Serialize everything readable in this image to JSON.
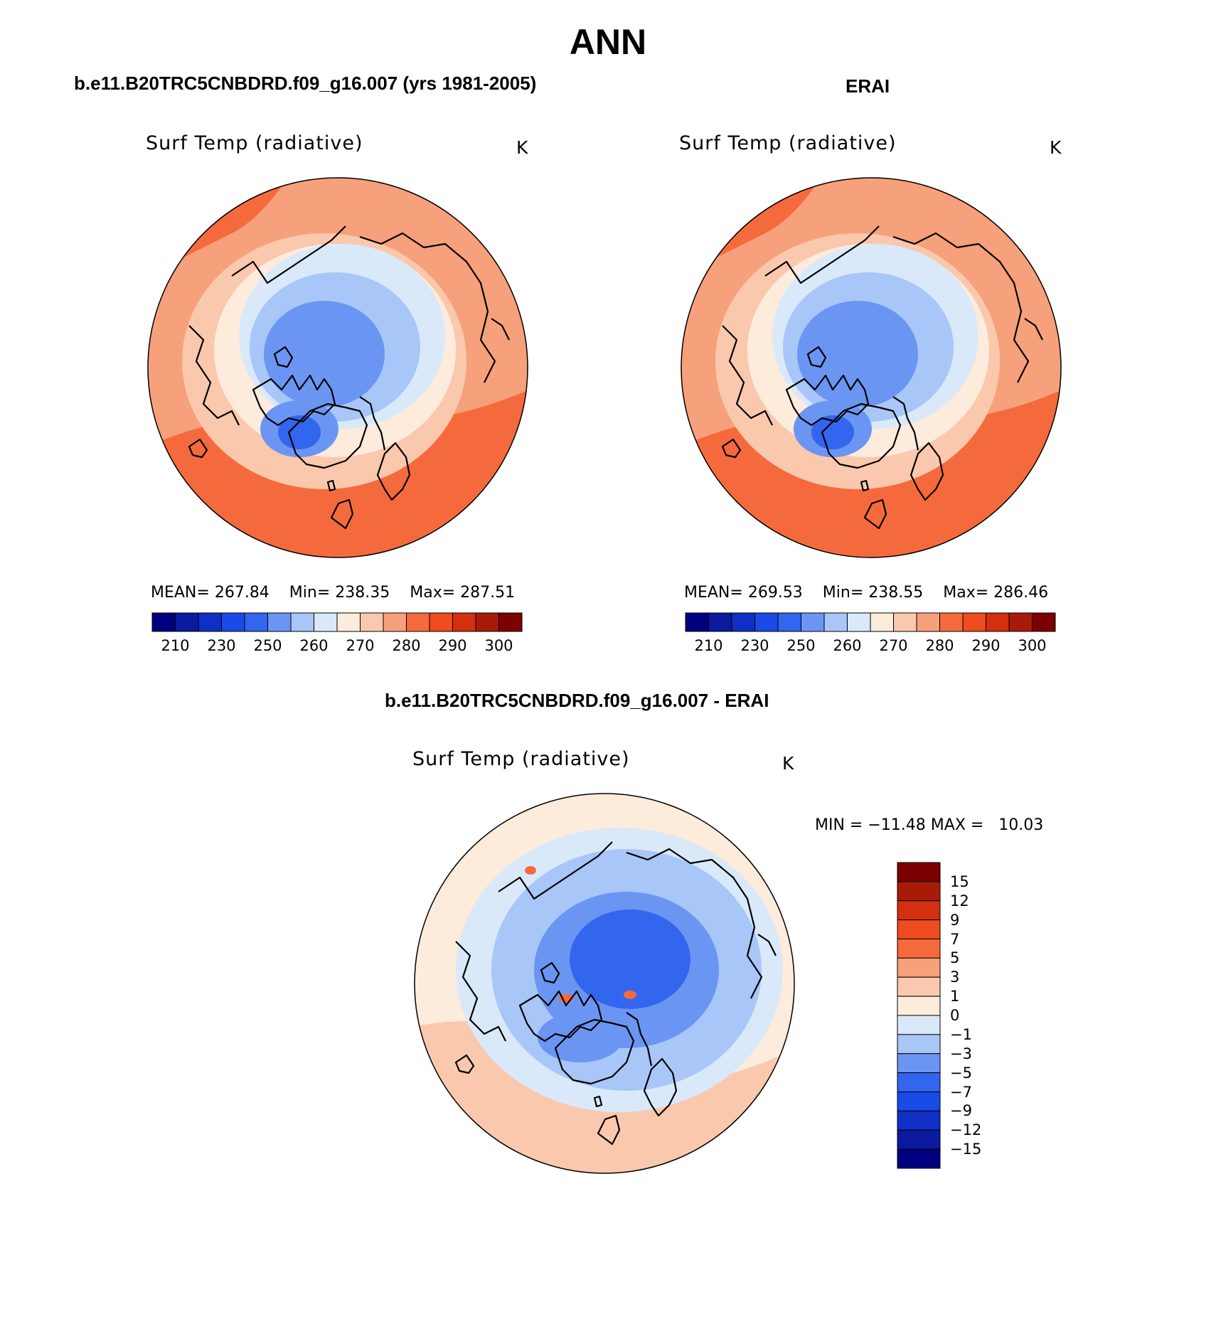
{
  "figure_title": "ANN",
  "panels": [
    {
      "case_title": "b.e11.B20TRC5CNBDRD.f09_g16.007 (yrs 1981-2005)",
      "field": "Surf Temp (radiative)",
      "units": "K",
      "stats": {
        "mean_label": "MEAN=",
        "mean": "267.84",
        "min_label": "Min=",
        "min": "238.35",
        "max_label": "Max=",
        "max": "287.51"
      }
    },
    {
      "case_title": "ERAI",
      "field": "Surf Temp (radiative)",
      "units": "K",
      "stats": {
        "mean_label": "MEAN=",
        "mean": "269.53",
        "min_label": "Min=",
        "min": "238.55",
        "max_label": "Max=",
        "max": "286.46"
      }
    }
  ],
  "diff_panel": {
    "case_title": "b.e11.B20TRC5CNBDRD.f09_g16.007 - ERAI",
    "field": "Surf Temp (radiative)",
    "units": "K",
    "minmax": {
      "min_label": "MIN =",
      "min": "−11.48",
      "max_label": "MAX =",
      "max": "10.03"
    }
  },
  "abs_colorbar": {
    "colors": [
      "#000080",
      "#0a1a9e",
      "#0f2fc5",
      "#1a4be6",
      "#3366ee",
      "#6b95f2",
      "#a8c6f7",
      "#d9e9fa",
      "#fdebdc",
      "#fac8ad",
      "#f7a07c",
      "#f56a3d",
      "#ee4b1e",
      "#d42f0e",
      "#a81b08",
      "#7d0000"
    ],
    "ticks": [
      "210",
      "230",
      "250",
      "260",
      "270",
      "280",
      "290",
      "300"
    ]
  },
  "diff_colorbar": {
    "colors_top_to_bottom": [
      "#7d0000",
      "#a81b08",
      "#d42f0e",
      "#ee4b1e",
      "#f56a3d",
      "#f7a07c",
      "#fac8ad",
      "#fdebdc",
      "#d9e9fa",
      "#a8c6f7",
      "#6b95f2",
      "#3366ee",
      "#1a4be6",
      "#0f2fc5",
      "#0a1a9e",
      "#000080"
    ],
    "ticks": [
      "15",
      "12",
      "9",
      "7",
      "5",
      "3",
      "1",
      "0",
      "−1",
      "−3",
      "−5",
      "−7",
      "−9",
      "−12",
      "−15"
    ]
  },
  "map_colors": {
    "warm_outer": "#f56a3d",
    "warm_mid": "#f7a07c",
    "warm_light": "#fac8ad",
    "neutral_warm": "#fdebdc",
    "neutral_cool": "#d9e9fa",
    "cool_light": "#a8c6f7",
    "cool_mid": "#6b95f2",
    "cool_deep": "#3366ee",
    "coast": "#000000"
  }
}
